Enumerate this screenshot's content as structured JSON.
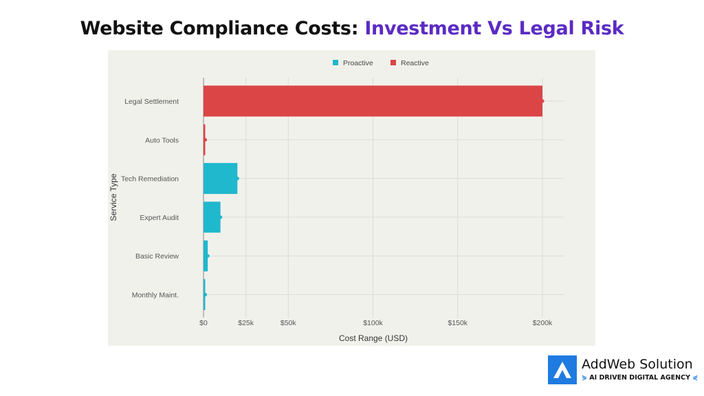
{
  "title": {
    "part1": "Website Compliance Costs: ",
    "part2": "Investment Vs Legal Risk"
  },
  "logo": {
    "name": "AddWeb Solution",
    "tagline": "AI DRIVEN DIGITAL AGENCY"
  },
  "chart_data": {
    "type": "bar",
    "orientation": "horizontal",
    "xlabel": "Cost Range (USD)",
    "ylabel": "Service Type",
    "xlim": [
      0,
      210000
    ],
    "xticks": [
      0,
      25000,
      50000,
      100000,
      150000,
      200000
    ],
    "xtick_labels": [
      "$0",
      "$25k",
      "$50k",
      "$100k",
      "$150k",
      "$200k"
    ],
    "grid": true,
    "legend_placement": "top",
    "legend": [
      {
        "name": "Proactive",
        "color": "#1fb8cd"
      },
      {
        "name": "Reactive",
        "color": "#db4545"
      }
    ],
    "categories": [
      "Legal Settlement",
      "Auto Tools",
      "Tech Remediation",
      "Expert Audit",
      "Basic Review",
      "Monthly Maint."
    ],
    "values": [
      200000,
      500,
      20000,
      10000,
      2500,
      1000
    ],
    "groups": [
      "Reactive",
      "Reactive",
      "Proactive",
      "Proactive",
      "Proactive",
      "Proactive"
    ]
  }
}
